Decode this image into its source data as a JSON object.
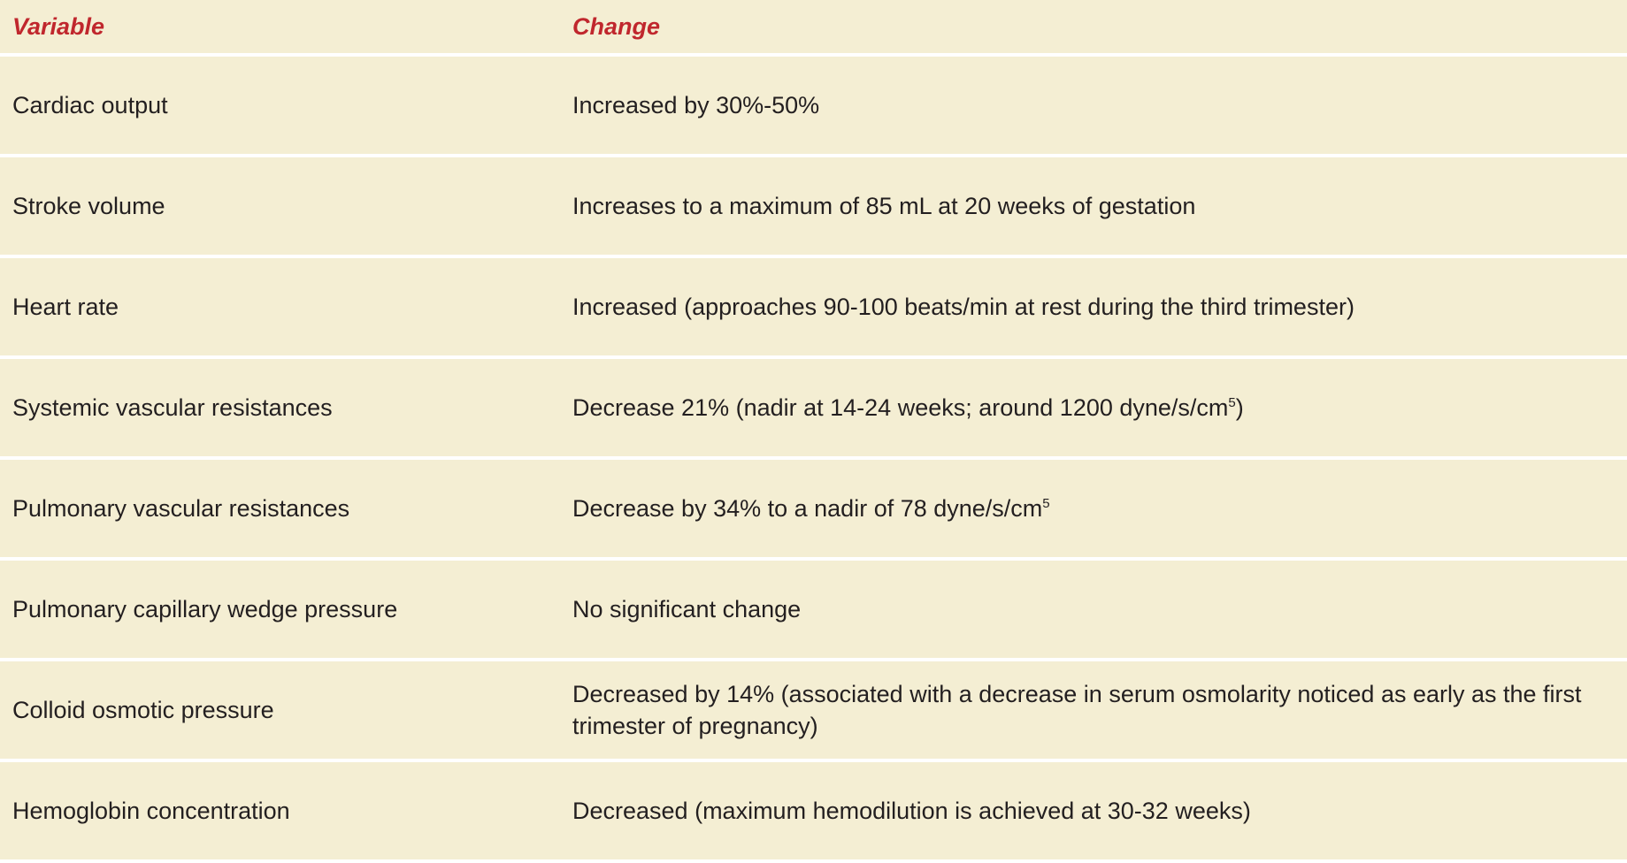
{
  "table": {
    "header": [
      "Variable",
      "Change"
    ],
    "rows": [
      [
        "Cardiac output",
        "Increased by 30%-50%"
      ],
      [
        "Stroke volume",
        "Increases to a maximum of 85 mL at 20 weeks of gestation"
      ],
      [
        "Heart rate",
        "Increased (approaches 90-100 beats/min at rest during the third trimester)"
      ],
      [
        "Systemic vascular resistances",
        {
          "text": "Decrease 21% (nadir at 14-24 weeks; around 1200 dyne/s/cm",
          "sup": "5",
          "tail": ")"
        }
      ],
      [
        "Pulmonary vascular resistances",
        {
          "text": "Decrease by 34% to a nadir of 78 dyne/s/cm",
          "sup": "5"
        }
      ],
      [
        "Pulmonary capillary wedge pressure",
        "No significant change"
      ],
      [
        "Colloid osmotic pressure",
        "Decreased by 14% (associated with a decrease in serum osmolarity noticed as early as the first trimester of pregnancy)"
      ],
      [
        "Hemoglobin concentration",
        "Decreased (maximum hemodilution is achieved at 30-32 weeks)"
      ]
    ]
  }
}
